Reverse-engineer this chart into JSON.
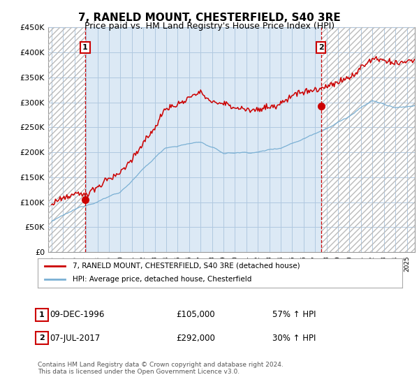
{
  "title": "7, RANELD MOUNT, CHESTERFIELD, S40 3RE",
  "subtitle": "Price paid vs. HM Land Registry's House Price Index (HPI)",
  "xlim_start": 1993.7,
  "xlim_end": 2025.7,
  "ylim": [
    0,
    450000
  ],
  "yticks": [
    0,
    50000,
    100000,
    150000,
    200000,
    250000,
    300000,
    350000,
    400000,
    450000
  ],
  "ytick_labels": [
    "£0",
    "£50K",
    "£100K",
    "£150K",
    "£200K",
    "£250K",
    "£300K",
    "£350K",
    "£400K",
    "£450K"
  ],
  "xticks": [
    1994,
    1995,
    1996,
    1997,
    1998,
    1999,
    2000,
    2001,
    2002,
    2003,
    2004,
    2005,
    2006,
    2007,
    2008,
    2009,
    2010,
    2011,
    2012,
    2013,
    2014,
    2015,
    2016,
    2017,
    2018,
    2019,
    2020,
    2021,
    2022,
    2023,
    2024,
    2025
  ],
  "sale1_x": 1996.93,
  "sale1_y": 105000,
  "sale2_x": 2017.52,
  "sale2_y": 292000,
  "line1_color": "#cc0000",
  "line2_color": "#7ab0d4",
  "plot_bg_color": "#dce9f5",
  "hatch_color": "#c8d8e8",
  "grid_color": "#b0c8e0",
  "legend_label1": "7, RANELD MOUNT, CHESTERFIELD, S40 3RE (detached house)",
  "legend_label2": "HPI: Average price, detached house, Chesterfield",
  "sale1_date": "09-DEC-1996",
  "sale1_price": "£105,000",
  "sale1_hpi": "57% ↑ HPI",
  "sale2_date": "07-JUL-2017",
  "sale2_price": "£292,000",
  "sale2_hpi": "30% ↑ HPI",
  "footer": "Contains HM Land Registry data © Crown copyright and database right 2024.\nThis data is licensed under the Open Government Licence v3.0.",
  "title_fontsize": 11,
  "subtitle_fontsize": 9
}
